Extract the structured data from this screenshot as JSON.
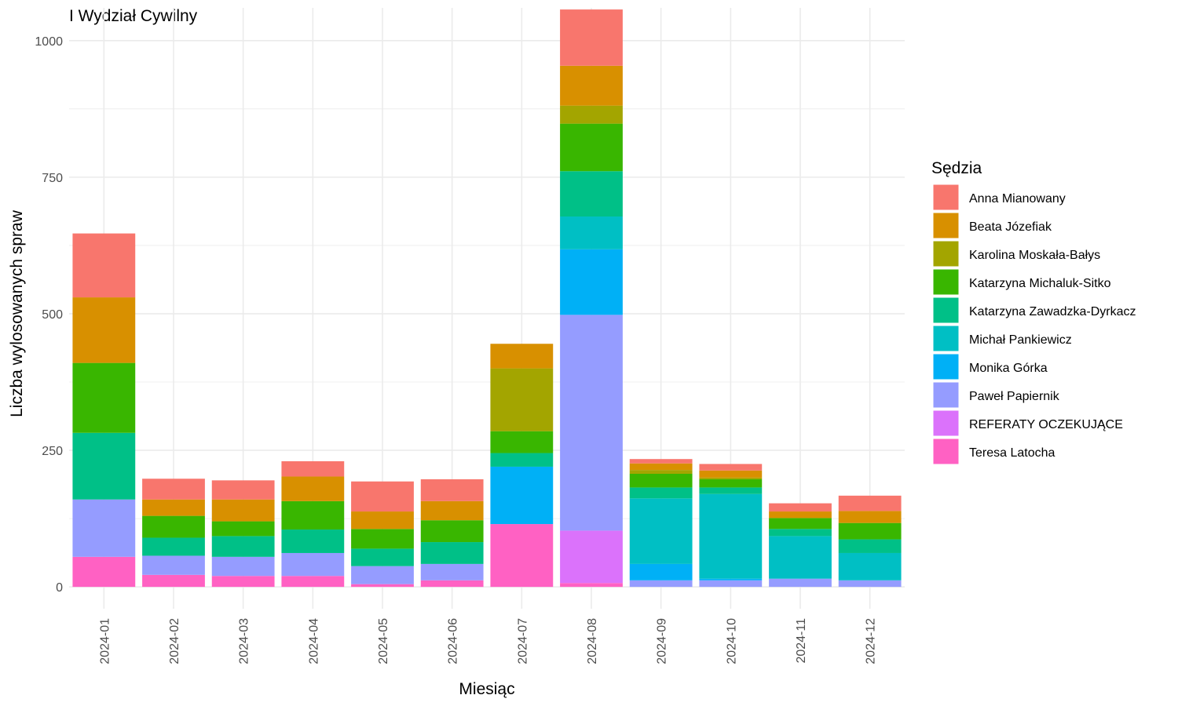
{
  "chart_data": {
    "type": "bar",
    "stacked": true,
    "title": "I Wydział Cywilny",
    "xlabel": "Miesiąc",
    "ylabel": "Liczba wylosowanych spraw",
    "ylim": [
      -40,
      1060
    ],
    "yticks": [
      0,
      250,
      500,
      750,
      1000
    ],
    "grid": true,
    "legend": {
      "title": "Sędzia",
      "position": "right"
    },
    "categories": [
      "2024-01",
      "2024-02",
      "2024-03",
      "2024-04",
      "2024-05",
      "2024-06",
      "2024-07",
      "2024-08",
      "2024-09",
      "2024-10",
      "2024-11",
      "2024-12"
    ],
    "series": [
      {
        "name": "Teresa Latocha",
        "color": "#FF61C3",
        "values": [
          55,
          22,
          20,
          20,
          5,
          12,
          115,
          7,
          0,
          0,
          0,
          0
        ]
      },
      {
        "name": "REFERATY OCZEKUJĄCE",
        "color": "#DB72FB",
        "values": [
          0,
          0,
          0,
          0,
          0,
          0,
          0,
          96,
          0,
          0,
          0,
          0
        ]
      },
      {
        "name": "Paweł Papiernik",
        "color": "#959CFF",
        "values": [
          105,
          35,
          35,
          42,
          33,
          30,
          0,
          395,
          12,
          12,
          15,
          12
        ]
      },
      {
        "name": "Monika Górka",
        "color": "#00B0F6",
        "values": [
          0,
          0,
          0,
          0,
          0,
          0,
          105,
          120,
          30,
          3,
          0,
          0
        ]
      },
      {
        "name": "Michał Pankiewicz",
        "color": "#00BFC4",
        "values": [
          0,
          0,
          0,
          0,
          0,
          0,
          0,
          60,
          120,
          155,
          78,
          50
        ]
      },
      {
        "name": "Katarzyna Zawadzka-Dyrkacz",
        "color": "#00C087",
        "values": [
          122,
          33,
          38,
          43,
          32,
          40,
          25,
          83,
          20,
          12,
          13,
          25
        ]
      },
      {
        "name": "Katarzyna Michaluk-Sitko",
        "color": "#39B600",
        "values": [
          128,
          40,
          27,
          52,
          36,
          40,
          40,
          87,
          25,
          15,
          20,
          30
        ]
      },
      {
        "name": "Karolina Moskała-Bałys",
        "color": "#A3A500",
        "values": [
          0,
          0,
          0,
          0,
          0,
          0,
          115,
          33,
          7,
          3,
          0,
          0
        ]
      },
      {
        "name": "Beata Józefiak",
        "color": "#D89000",
        "values": [
          120,
          30,
          40,
          45,
          32,
          35,
          45,
          73,
          12,
          13,
          12,
          22
        ]
      },
      {
        "name": "Anna Mianowany",
        "color": "#F8766D",
        "values": [
          117,
          38,
          35,
          28,
          55,
          40,
          0,
          103,
          8,
          12,
          15,
          28
        ]
      }
    ],
    "legend_order": [
      "Anna Mianowany",
      "Beata Józefiak",
      "Karolina Moskała-Bałys",
      "Katarzyna Michaluk-Sitko",
      "Katarzyna Zawadzka-Dyrkacz",
      "Michał Pankiewicz",
      "Monika Górka",
      "Paweł Papiernik",
      "REFERATY OCZEKUJĄCE",
      "Teresa Latocha"
    ]
  }
}
